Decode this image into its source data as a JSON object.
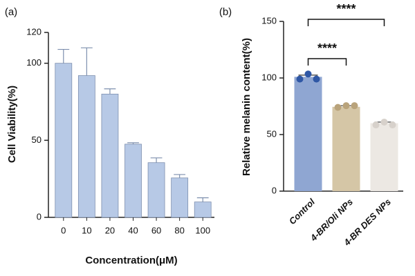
{
  "chart_data": [
    {
      "type": "bar",
      "panel_label": "(a)",
      "x_label": "Concentration(μM)",
      "y_label": "Cell Viability(%)",
      "categories": [
        "0",
        "10",
        "20",
        "40",
        "60",
        "80",
        "100"
      ],
      "values": [
        100,
        92,
        80,
        47.5,
        35.5,
        25.6,
        10
      ],
      "errors": [
        9,
        18,
        3.4,
        0.9,
        3.1,
        2.2,
        2.7
      ],
      "color": "#b7c9e6",
      "edge_color": "#7d8fae",
      "ylim": [
        0,
        120
      ],
      "yticks": [
        0,
        50,
        100,
        120
      ]
    },
    {
      "type": "bar",
      "panel_label": "(b)",
      "y_label": "Relative melanin content(%)",
      "categories": [
        "Control",
        "4-BR/Oli NPs",
        "4-BR DES NPs"
      ],
      "values": [
        101,
        74.5,
        60
      ],
      "errors": [
        1.5,
        1,
        1
      ],
      "points": [
        [
          99,
          103.5,
          99
        ],
        [
          74,
          75.5,
          75.5
        ],
        [
          58.5,
          61,
          58.5
        ]
      ],
      "colors": [
        "#8fa6d2",
        "#d5c6a6",
        "#ece8e3"
      ],
      "point_colors": [
        "#2f57a5",
        "#b9a37b",
        "#d7d1cb"
      ],
      "annotations": [
        "****",
        "****"
      ],
      "ylim": [
        0,
        150
      ],
      "yticks": [
        0,
        50,
        100,
        150
      ]
    }
  ]
}
